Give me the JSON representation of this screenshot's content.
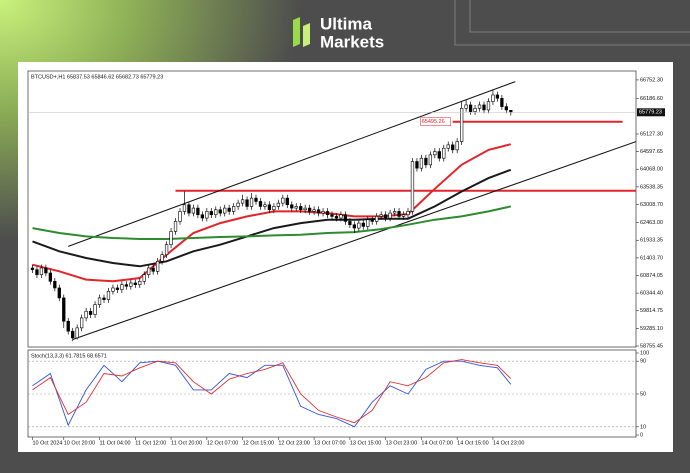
{
  "brand": {
    "line1": "Ultima",
    "line2": "Markets"
  },
  "chart_data": [
    {
      "type": "candlestick",
      "title": "BTCUSD+,H1 65837.53 65846.62 65682.73 65779.23",
      "up_color": "#ffffff",
      "down_color": "#000000",
      "xlim": [
        -1,
        135
      ],
      "ylim": [
        58755.45,
        66960
      ],
      "yticks": [
        {
          "value": 66752.3,
          "label": "66752.30"
        },
        {
          "value": 66186.6,
          "label": "66186.60"
        },
        {
          "value": 65127.3,
          "label": "65127.30"
        },
        {
          "value": 64597.65,
          "label": "64597.65"
        },
        {
          "value": 64068.0,
          "label": "64068.00"
        },
        {
          "value": 63538.35,
          "label": "63538.35"
        },
        {
          "value": 63008.7,
          "label": "63008.70"
        },
        {
          "value": 62463.0,
          "label": "62463.00"
        },
        {
          "value": 61933.35,
          "label": "61933.35"
        },
        {
          "value": 61403.7,
          "label": "61403.70"
        },
        {
          "value": 60874.05,
          "label": "60874.05"
        },
        {
          "value": 60344.4,
          "label": "60344.40"
        },
        {
          "value": 59814.75,
          "label": "59814.75"
        },
        {
          "value": 59285.1,
          "label": "59285.10"
        },
        {
          "value": 58755.45,
          "label": "58755.45"
        }
      ],
      "xticks": [
        {
          "value": 0,
          "label": "10 Oct 2024"
        },
        {
          "value": 7,
          "label": "10 Oct 20:00"
        },
        {
          "value": 15,
          "label": "11 Oct 04:00"
        },
        {
          "value": 23,
          "label": "11 Oct 12:00"
        },
        {
          "value": 31,
          "label": "11 Oct 20:00"
        },
        {
          "value": 39,
          "label": "12 Oct 07:00"
        },
        {
          "value": 47,
          "label": "12 Oct 15:00"
        },
        {
          "value": 55,
          "label": "12 Oct 23:00"
        },
        {
          "value": 63,
          "label": "13 Oct 07:00"
        },
        {
          "value": 71,
          "label": "13 Oct 15:00"
        },
        {
          "value": 79,
          "label": "13 Oct 23:00"
        },
        {
          "value": 87,
          "label": "14 Oct 07:00"
        },
        {
          "value": 95,
          "label": "14 Oct 15:00"
        },
        {
          "value": 103,
          "label": "14 Oct 23:00"
        }
      ],
      "open": [
        61100,
        61050,
        60900,
        61100,
        60950,
        60700,
        60500,
        60200,
        59500,
        59200,
        59000,
        59300,
        59600,
        59800,
        59700,
        60000,
        60200,
        60150,
        60400,
        60500,
        60450,
        60600,
        60550,
        60650,
        60600,
        60700,
        60900,
        61100,
        61000,
        61300,
        61500,
        61800,
        62200,
        62500,
        62800,
        63000,
        62750,
        62900,
        62700,
        62600,
        62800,
        62700,
        62850,
        62750,
        62900,
        62800,
        62950,
        63050,
        63150,
        62950,
        63200,
        63100,
        62950,
        63000,
        62850,
        62950,
        63050,
        63200,
        63000,
        62900,
        62950,
        62850,
        62900,
        62800,
        62850,
        62750,
        62800,
        62700,
        62650,
        62600,
        62700,
        62500,
        62400,
        62300,
        62450,
        62350,
        62550,
        62500,
        62650,
        62700,
        62600,
        62750,
        62800,
        62650,
        62700,
        62800,
        64300,
        64100,
        64400,
        64200,
        64500,
        64600,
        64400,
        64700,
        64800,
        64650,
        64900,
        65900,
        66000,
        65800,
        65900,
        66000,
        65850,
        66100,
        66300,
        66200,
        65950,
        65837.53
      ],
      "high": [
        61200,
        61150,
        61200,
        61200,
        61050,
        60800,
        60600,
        60300,
        59600,
        59300,
        59400,
        59700,
        59900,
        59900,
        60100,
        60300,
        60300,
        60500,
        60600,
        60600,
        60700,
        60700,
        60750,
        60750,
        60800,
        61000,
        61200,
        61200,
        61400,
        61600,
        61900,
        62300,
        62600,
        62900,
        63400,
        63100,
        63000,
        63000,
        62800,
        62900,
        62900,
        62950,
        62950,
        63000,
        63000,
        63050,
        63150,
        63300,
        63250,
        63350,
        63300,
        63200,
        63100,
        63100,
        63050,
        63150,
        63300,
        63300,
        63100,
        63050,
        63050,
        63000,
        63000,
        62950,
        62950,
        62900,
        62900,
        62800,
        62750,
        62800,
        62800,
        62600,
        62500,
        62550,
        62550,
        62650,
        62650,
        62750,
        62800,
        62800,
        62850,
        62900,
        62900,
        62800,
        62900,
        64400,
        64400,
        64500,
        64500,
        64600,
        64700,
        64700,
        64800,
        64900,
        64900,
        65000,
        66100,
        66150,
        66100,
        66000,
        66100,
        66100,
        66200,
        66450,
        66400,
        66300,
        66050,
        65846.62
      ],
      "low": [
        60950,
        60800,
        60800,
        60850,
        60600,
        60400,
        60100,
        59300,
        59100,
        58900,
        58950,
        59200,
        59500,
        59600,
        59600,
        59900,
        60050,
        60050,
        60300,
        60350,
        60350,
        60450,
        60450,
        60500,
        60500,
        60600,
        60800,
        60900,
        60900,
        61200,
        61400,
        61700,
        62100,
        62400,
        62700,
        62650,
        62650,
        62600,
        62500,
        62500,
        62600,
        62600,
        62650,
        62650,
        62700,
        62700,
        62850,
        62950,
        62850,
        62850,
        63000,
        62850,
        62850,
        62750,
        62750,
        62850,
        62950,
        62900,
        62800,
        62800,
        62750,
        62750,
        62700,
        62700,
        62650,
        62650,
        62600,
        62550,
        62500,
        62500,
        62400,
        62300,
        62150,
        62200,
        62250,
        62250,
        62400,
        62400,
        62550,
        62500,
        62500,
        62650,
        62550,
        62550,
        62600,
        62700,
        64000,
        64000,
        64100,
        64100,
        64400,
        64300,
        64300,
        64600,
        64550,
        64550,
        64800,
        65800,
        65700,
        65700,
        65800,
        65750,
        65750,
        66000,
        66100,
        65850,
        65750,
        65682.73
      ],
      "close": [
        61050,
        60900,
        61100,
        60950,
        60700,
        60500,
        60200,
        59500,
        59200,
        59000,
        59300,
        59600,
        59800,
        59700,
        60000,
        60200,
        60150,
        60400,
        60500,
        60450,
        60600,
        60550,
        60650,
        60600,
        60700,
        60900,
        61100,
        61000,
        61300,
        61500,
        61800,
        62200,
        62500,
        62800,
        63000,
        62750,
        62900,
        62700,
        62600,
        62800,
        62700,
        62850,
        62750,
        62900,
        62800,
        62950,
        63050,
        63150,
        62950,
        63200,
        63100,
        62950,
        63000,
        62850,
        62950,
        63050,
        63200,
        63000,
        62900,
        62950,
        62850,
        62900,
        62800,
        62850,
        62750,
        62800,
        62700,
        62650,
        62600,
        62700,
        62500,
        62400,
        62300,
        62450,
        62350,
        62550,
        62500,
        62650,
        62700,
        62600,
        62750,
        62800,
        62650,
        62700,
        62800,
        64300,
        64100,
        64400,
        64200,
        64500,
        64600,
        64400,
        64700,
        64800,
        64650,
        64900,
        65900,
        66000,
        65800,
        65900,
        66000,
        65850,
        66100,
        66300,
        66200,
        65950,
        65850,
        65779.23
      ],
      "lines": [
        {
          "color": "#e3242b",
          "x": [
            0,
            6,
            12,
            18,
            24,
            30,
            36,
            42,
            48,
            54,
            60,
            66,
            72,
            78,
            84,
            90,
            96,
            102,
            107
          ],
          "values": [
            61200,
            61000,
            60750,
            60700,
            60800,
            61500,
            62150,
            62450,
            62650,
            62800,
            62800,
            62750,
            62650,
            62650,
            62720,
            63480,
            64200,
            64650,
            64820
          ]
        },
        {
          "color": "#1a1a1a",
          "x": [
            0,
            6,
            12,
            18,
            24,
            30,
            36,
            42,
            48,
            54,
            60,
            66,
            72,
            78,
            84,
            90,
            96,
            102,
            107
          ],
          "values": [
            61900,
            61600,
            61400,
            61250,
            61150,
            61300,
            61600,
            61800,
            62050,
            62300,
            62450,
            62550,
            62550,
            62580,
            62580,
            62950,
            63400,
            63800,
            64050
          ]
        },
        {
          "color": "#2e8b2e",
          "x": [
            0,
            6,
            12,
            18,
            24,
            30,
            36,
            42,
            48,
            54,
            60,
            66,
            72,
            78,
            84,
            90,
            96,
            102,
            107
          ],
          "values": [
            62300,
            62150,
            62050,
            62000,
            61970,
            61970,
            62000,
            62030,
            62050,
            62080,
            62100,
            62150,
            62180,
            62270,
            62400,
            62550,
            62650,
            62800,
            62950
          ]
        }
      ],
      "trendlines": [
        {
          "x": [
            8,
            108
          ],
          "y": [
            61750,
            66700
          ]
        },
        {
          "x": [
            9,
            135
          ],
          "y": [
            58950,
            64900
          ]
        }
      ],
      "levels": [
        {
          "value": 63420,
          "x": [
            32,
            135
          ],
          "color": "#e3242b"
        },
        {
          "value": 65495.26,
          "x": [
            94,
            132
          ],
          "color": "#e3242b",
          "show_label": true
        }
      ]
    },
    {
      "type": "line",
      "title": "Stoch(13,3,3) 61.7815 68.6571",
      "xlim": [
        -1,
        135
      ],
      "ylim": [
        0,
        100
      ],
      "yticks": [
        100,
        90,
        50,
        10,
        0
      ],
      "levels": [
        90,
        50,
        10
      ],
      "series": [
        {
          "color": "#3355dd",
          "x": [
            0,
            4,
            8,
            12,
            16,
            20,
            24,
            28,
            32,
            36,
            40,
            44,
            48,
            52,
            56,
            60,
            64,
            68,
            72,
            76,
            80,
            84,
            88,
            92,
            96,
            100,
            104,
            107
          ],
          "values": [
            60,
            75,
            12,
            55,
            85,
            65,
            88,
            90,
            85,
            55,
            55,
            75,
            70,
            85,
            85,
            35,
            25,
            20,
            10,
            40,
            60,
            50,
            80,
            90,
            90,
            85,
            82,
            61.7815
          ]
        },
        {
          "color": "#e03131",
          "x": [
            0,
            4,
            8,
            12,
            16,
            20,
            24,
            28,
            32,
            36,
            40,
            44,
            48,
            52,
            56,
            60,
            64,
            68,
            72,
            76,
            80,
            84,
            88,
            92,
            96,
            100,
            104,
            107
          ],
          "values": [
            55,
            70,
            25,
            40,
            75,
            72,
            82,
            90,
            88,
            65,
            50,
            68,
            75,
            80,
            88,
            50,
            30,
            22,
            15,
            30,
            65,
            60,
            70,
            88,
            92,
            88,
            85,
            68.6571
          ]
        }
      ]
    }
  ]
}
